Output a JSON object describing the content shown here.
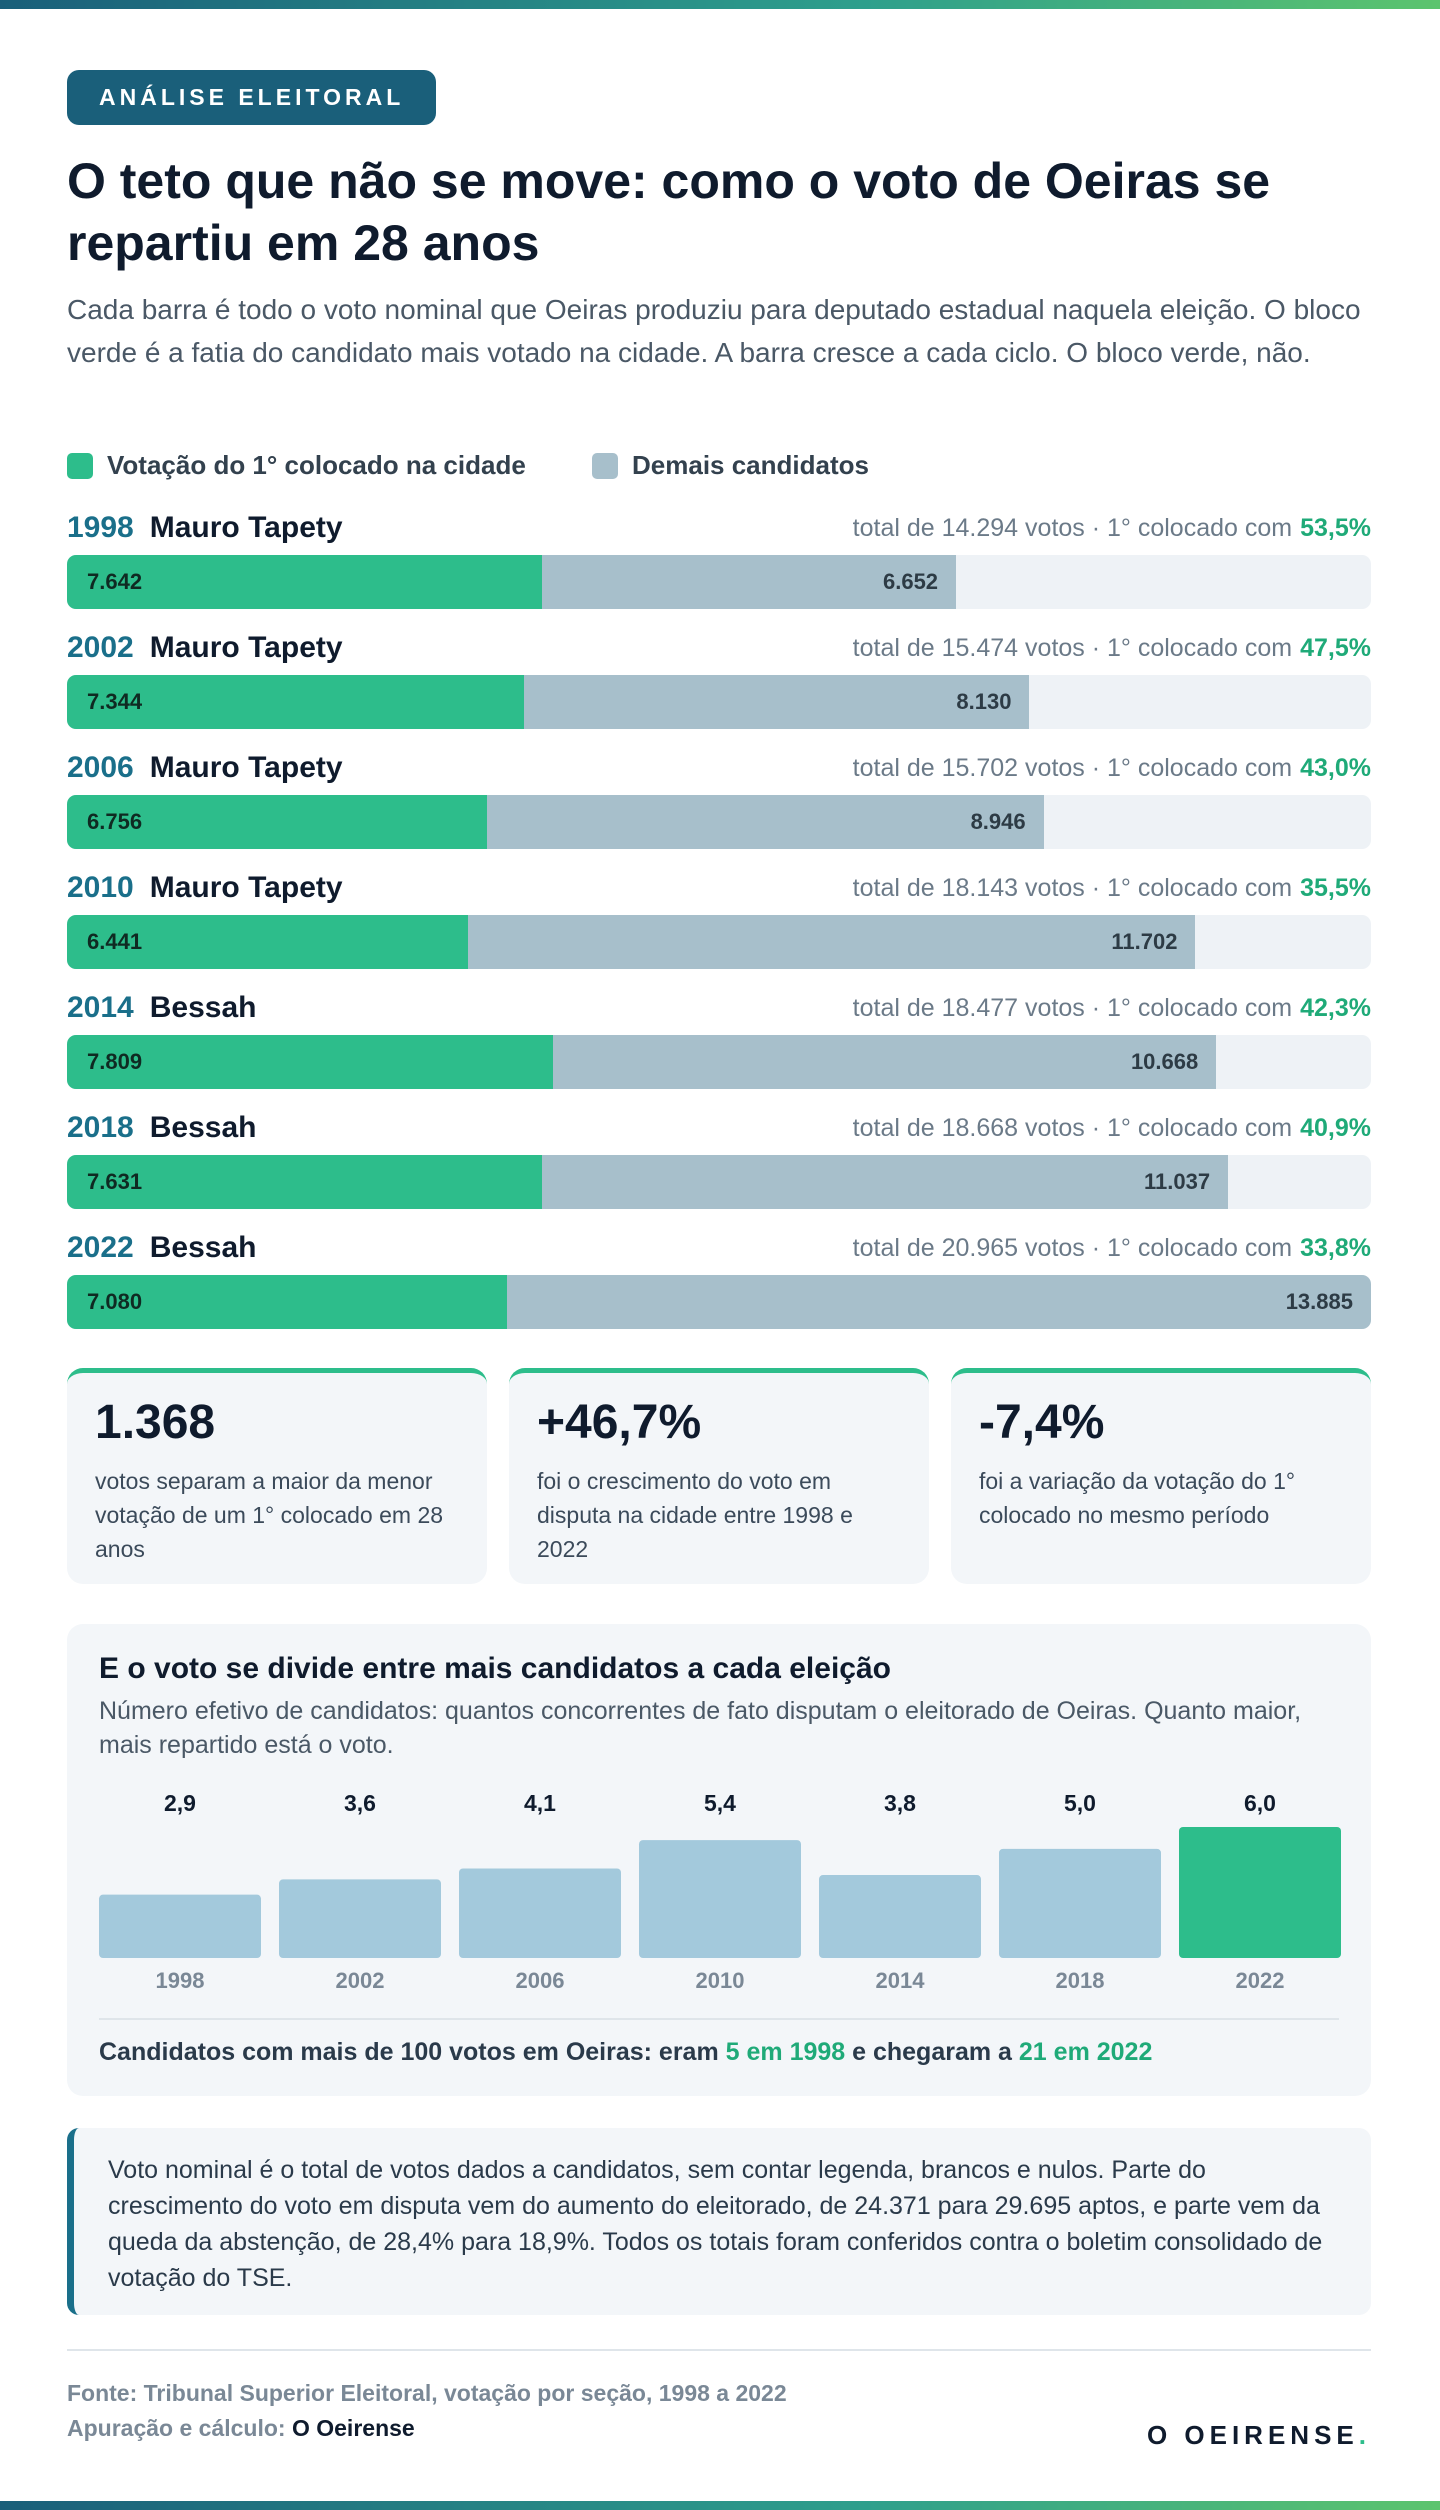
{
  "header": {
    "badge": "ANÁLISE ELEITORAL",
    "title": "O teto que não se move: como o voto de Oeiras se repartiu em 28 anos",
    "subtitle": "Cada barra é todo o voto nominal que Oeiras produziu para deputado estadual naquela eleição. O bloco verde é a fatia do candidato mais votado na cidade. A barra cresce a cada ciclo. O bloco verde, não."
  },
  "chart_data": [
    {
      "type": "stacked-bar-horizontal",
      "categories": [
        "1998",
        "2002",
        "2006",
        "2010",
        "2014",
        "2018",
        "2022"
      ],
      "candidates": [
        "Mauro Tapety",
        "Mauro Tapety",
        "Mauro Tapety",
        "Mauro Tapety",
        "Bessah",
        "Bessah",
        "Bessah"
      ],
      "series": [
        {
          "name": "Votação do 1° colocado na cidade",
          "color": "#2dbd8b",
          "values": [
            7642,
            7344,
            6756,
            6441,
            7809,
            7631,
            7080
          ],
          "value_labels": [
            "7.642",
            "7.344",
            "6.756",
            "6.441",
            "7.809",
            "7.631",
            "7.080"
          ]
        },
        {
          "name": "Demais candidatos",
          "color": "#a7bfcb",
          "values": [
            6652,
            8130,
            8946,
            11702,
            10668,
            11037,
            13885
          ],
          "value_labels": [
            "6.652",
            "8.130",
            "8.946",
            "11.702",
            "10.668",
            "11.037",
            "13.885"
          ]
        }
      ],
      "xlim": [
        0,
        20965
      ],
      "total_notes": [
        "total de 14.294 votos · 1° colocado com",
        "total de 15.474 votos · 1° colocado com",
        "total de 15.702 votos · 1° colocado com",
        "total de 18.143 votos · 1° colocado com",
        "total de 18.477 votos · 1° colocado com",
        "total de 18.668 votos · 1° colocado com",
        "total de 20.965 votos · 1° colocado com"
      ],
      "share_labels": [
        "53,5%",
        "47,5%",
        "43,0%",
        "35,5%",
        "42,3%",
        "40,9%",
        "33,8%"
      ]
    },
    {
      "type": "bar",
      "title": "E o voto se divide entre mais candidatos a cada eleição",
      "subtitle": "Número efetivo de candidatos: quantos concorrentes de fato disputam o eleitorado de Oeiras. Quanto maior, mais repartido está o voto.",
      "categories": [
        "1998",
        "2002",
        "2006",
        "2010",
        "2014",
        "2018",
        "2022"
      ],
      "values": [
        2.9,
        3.6,
        4.1,
        5.4,
        3.8,
        5.0,
        6.0
      ],
      "value_labels": [
        "2,9",
        "3,6",
        "4,1",
        "5,4",
        "3,8",
        "5,0",
        "6,0"
      ],
      "colors": [
        "#a3c9dc",
        "#a3c9dc",
        "#a3c9dc",
        "#a3c9dc",
        "#a3c9dc",
        "#a3c9dc",
        "#2dbd8b"
      ],
      "ylim": [
        0,
        6
      ],
      "footnote": [
        "Candidatos com mais de 100 votos em Oeiras: eram ",
        "5 em 1998",
        " e chegaram a ",
        "21 em 2022"
      ]
    }
  ],
  "stats": [
    {
      "value": "1.368",
      "text": "votos separam a maior da menor votação de um 1° colocado em 28 anos"
    },
    {
      "value": "+46,7%",
      "text": "foi o crescimento do voto em disputa na cidade entre 1998 e 2022"
    },
    {
      "value": "-7,4%",
      "text": "foi a variação da votação do 1° colocado no mesmo período"
    }
  ],
  "note": "Voto nominal é o total de votos dados a candidatos, sem contar legenda, brancos e nulos. Parte do crescimento do voto em disputa vem do aumento do eleitorado, de 24.371 para 29.695 aptos, e parte vem da queda da abstenção, de 28,4% para 18,9%. Todos os totais foram conferidos contra o boletim consolidado de votação do TSE.",
  "footer": {
    "source": "Fonte: Tribunal Superior Eleitoral, votação por seção, 1998 a 2022",
    "credit_label": "Apuração e cálculo:",
    "credit_name": "O Oeirense",
    "logo": "O OEIRENSE",
    "logo_dot": "."
  }
}
